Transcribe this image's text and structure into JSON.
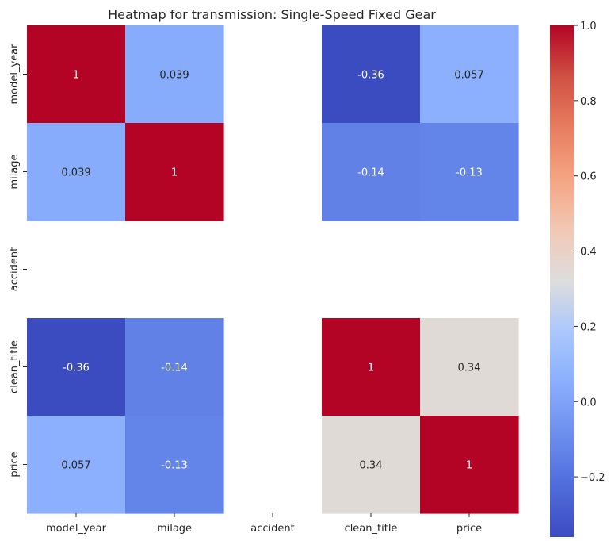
{
  "chart_data": {
    "type": "heatmap",
    "title": "Heatmap for transmission: Single-Speed Fixed Gear",
    "xlabel": "",
    "ylabel": "",
    "x_categories": [
      "model_year",
      "milage",
      "accident",
      "clean_title",
      "price"
    ],
    "y_categories": [
      "model_year",
      "milage",
      "accident",
      "clean_title",
      "price"
    ],
    "values": [
      [
        1,
        0.039,
        null,
        -0.36,
        0.057
      ],
      [
        0.039,
        1,
        null,
        -0.14,
        -0.13
      ],
      [
        null,
        null,
        null,
        null,
        null
      ],
      [
        -0.36,
        -0.14,
        null,
        1,
        0.34
      ],
      [
        0.057,
        -0.13,
        null,
        0.34,
        1
      ]
    ],
    "annotations": [
      [
        "1",
        "0.039",
        "",
        "-0.36",
        "0.057"
      ],
      [
        "0.039",
        "1",
        "",
        "-0.14",
        "-0.13"
      ],
      [
        "",
        "",
        "",
        "",
        ""
      ],
      [
        "-0.36",
        "-0.14",
        "",
        "1",
        "0.34"
      ],
      [
        "0.057",
        "-0.13",
        "",
        "0.34",
        "1"
      ]
    ],
    "colormap": "coolwarm",
    "vmin": -0.36,
    "vmax": 1.0,
    "colorbar": {
      "ticks": [
        -0.2,
        0.0,
        0.2,
        0.4,
        0.6,
        0.8,
        1.0
      ],
      "tick_labels": [
        "−0.2",
        "0.0",
        "0.2",
        "0.4",
        "0.6",
        "0.8",
        "1.0"
      ]
    },
    "grid": false,
    "legend": "colorbar-right"
  }
}
